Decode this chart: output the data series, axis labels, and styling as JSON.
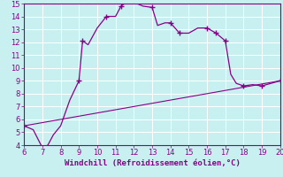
{
  "xlabel": "Windchill (Refroidissement éolien,°C)",
  "bg_color": "#c8f0f0",
  "line_color": "#880088",
  "marker_color": "#880088",
  "xlim": [
    6,
    20
  ],
  "ylim": [
    4,
    15
  ],
  "xticks": [
    6,
    7,
    8,
    9,
    10,
    11,
    12,
    13,
    14,
    15,
    16,
    17,
    18,
    19,
    20
  ],
  "yticks": [
    4,
    5,
    6,
    7,
    8,
    9,
    10,
    11,
    12,
    13,
    14,
    15
  ],
  "curve1_x": [
    6.0,
    6.5,
    7.0,
    7.3,
    7.6,
    8.0,
    8.5,
    9.0,
    9.2,
    9.5,
    10.0,
    10.5,
    11.0,
    11.3,
    11.5,
    12.0,
    12.5,
    13.0,
    13.3,
    13.7,
    14.0,
    14.5,
    15.0,
    15.5,
    16.0,
    16.5,
    17.0,
    17.3,
    17.6,
    18.0,
    18.5,
    19.0,
    19.5,
    20.0
  ],
  "curve1_y": [
    5.5,
    5.2,
    3.8,
    4.0,
    4.8,
    5.5,
    7.5,
    9.0,
    12.1,
    11.8,
    13.1,
    14.0,
    14.0,
    14.8,
    15.0,
    15.1,
    14.8,
    14.7,
    13.3,
    13.5,
    13.5,
    12.7,
    12.7,
    13.1,
    13.1,
    12.7,
    12.1,
    9.5,
    8.8,
    8.6,
    8.7,
    8.6,
    8.8,
    9.0
  ],
  "curve1_markers_x": [
    6.0,
    7.0,
    9.0,
    9.2,
    10.5,
    11.3,
    13.0,
    14.0,
    14.5,
    16.0,
    16.5,
    17.0,
    18.0,
    19.0,
    20.0
  ],
  "curve1_markers_y": [
    5.5,
    3.8,
    9.0,
    12.1,
    14.0,
    14.8,
    14.7,
    13.5,
    12.7,
    13.1,
    12.7,
    12.1,
    8.6,
    8.6,
    9.0
  ],
  "curve2_x": [
    6,
    20
  ],
  "curve2_y": [
    5.5,
    9.0
  ],
  "xlabel_fontsize": 6.5,
  "tick_fontsize": 6.0
}
